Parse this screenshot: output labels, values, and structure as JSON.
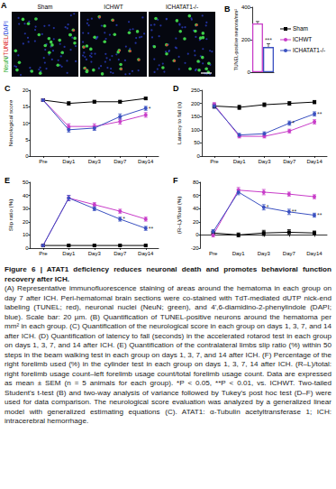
{
  "panel_a": {
    "panel": "A",
    "stain_label": "NeuN/TUNEL/DAPI",
    "images": [
      "Sham",
      "ICHWT",
      "ICHATAT1-/-"
    ]
  },
  "chart_data": [
    {
      "panel": "B",
      "type": "bar",
      "categories": [
        null,
        null
      ],
      "values": [
        300,
        155
      ],
      "errors": [
        12,
        20
      ],
      "colors": [
        "#c83cc8",
        "#3a50c0"
      ],
      "y_label": "TUNEL-positive neurons/mm²",
      "ylim": [
        0,
        400
      ],
      "yticks": [
        0,
        200,
        400
      ],
      "tick_labels": "y",
      "grid": false,
      "annotations": [
        {
          "index": 1,
          "text": "***"
        }
      ]
    },
    {
      "panel": "C",
      "type": "line",
      "categories": [
        "Pre",
        "Day1",
        "Day3",
        "Day7",
        "Day14"
      ],
      "y_label": "Neurological score",
      "ylim": [
        0,
        20
      ],
      "yticks": [
        0,
        5,
        10,
        15,
        20
      ],
      "grid": false,
      "series": [
        {
          "name": "Sham",
          "color": "#000000",
          "marker": "square",
          "values": [
            17,
            16,
            16.5,
            16.5,
            17.5
          ],
          "errors": [
            0.3,
            0.5,
            0.4,
            0.4,
            0.3
          ]
        },
        {
          "name": "ICHWT",
          "color": "#c83cc8",
          "marker": "circle",
          "values": [
            17,
            9,
            9,
            10.5,
            12.5
          ],
          "errors": [
            0.3,
            0.8,
            0.8,
            0.8,
            0.7
          ]
        },
        {
          "name": "ICHATAT1-/-",
          "color": "#3a50c0",
          "marker": "circle",
          "values": [
            17,
            8,
            8.5,
            12,
            14.5
          ],
          "errors": [
            0.3,
            0.7,
            0.7,
            0.8,
            0.6
          ]
        }
      ],
      "annotations": [
        {
          "x": "Day14",
          "series": "ICHATAT1-/-",
          "text": "*"
        }
      ]
    },
    {
      "panel": "D",
      "type": "line",
      "categories": [
        "Pre",
        "Day1",
        "Day3",
        "Day7",
        "Day14"
      ],
      "y_label": "Latency to fall (s)",
      "ylim": [
        0,
        250
      ],
      "yticks": [
        0,
        50,
        100,
        150,
        200,
        250
      ],
      "grid": false,
      "series": [
        {
          "name": "Sham",
          "color": "#000000",
          "marker": "square",
          "values": [
            190,
            185,
            195,
            200,
            205
          ],
          "errors": [
            8,
            8,
            7,
            7,
            6
          ]
        },
        {
          "name": "ICHWT",
          "color": "#c83cc8",
          "marker": "circle",
          "values": [
            195,
            75,
            75,
            95,
            130
          ],
          "errors": [
            8,
            6,
            6,
            7,
            8
          ]
        },
        {
          "name": "ICHATAT1-/-",
          "color": "#3a50c0",
          "marker": "circle",
          "values": [
            190,
            80,
            85,
            125,
            160
          ],
          "errors": [
            8,
            6,
            7,
            8,
            8
          ]
        }
      ],
      "annotations": [
        {
          "x": "Day7",
          "series": "ICHATAT1-/-",
          "text": "*"
        },
        {
          "x": "Day14",
          "series": "ICHATAT1-/-",
          "text": "**"
        }
      ]
    },
    {
      "panel": "E",
      "type": "line",
      "categories": [
        "Pre",
        "Day1",
        "Day3",
        "Day7",
        "Day14"
      ],
      "y_label": "Slip ratio (%)",
      "ylim": [
        0,
        50
      ],
      "yticks": [
        0,
        10,
        20,
        30,
        40,
        50
      ],
      "grid": false,
      "series": [
        {
          "name": "Sham",
          "color": "#000000",
          "marker": "square",
          "values": [
            2,
            2,
            2,
            2,
            2
          ],
          "errors": [
            0.5,
            0.5,
            0.5,
            0.5,
            0.5
          ]
        },
        {
          "name": "ICHWT",
          "color": "#c83cc8",
          "marker": "circle",
          "values": [
            2,
            38,
            33,
            28,
            22
          ],
          "errors": [
            0.5,
            2,
            1.5,
            1.5,
            1.5
          ]
        },
        {
          "name": "ICHATAT1-/-",
          "color": "#3a50c0",
          "marker": "circle",
          "values": [
            2,
            38,
            30,
            22,
            15
          ],
          "errors": [
            0.5,
            2,
            1.5,
            1.5,
            1.5
          ]
        }
      ],
      "annotations": [
        {
          "x": "Day7",
          "series": "ICHATAT1-/-",
          "text": "*"
        },
        {
          "x": "Day14",
          "series": "ICHATAT1-/-",
          "text": "**"
        }
      ]
    },
    {
      "panel": "F",
      "type": "line",
      "categories": [
        "Pre",
        "Day1",
        "Day3",
        "Day7",
        "Day14"
      ],
      "y_label": "(R–L)/Total (%)",
      "ylim": [
        -20,
        80
      ],
      "yticks": [
        -20,
        0,
        20,
        40,
        60,
        80
      ],
      "grid": false,
      "series": [
        {
          "name": "Sham",
          "color": "#000000",
          "marker": "square",
          "values": [
            3,
            0,
            3,
            4,
            3
          ],
          "errors": [
            3,
            3,
            4,
            4,
            3
          ]
        },
        {
          "name": "ICHWT",
          "color": "#c83cc8",
          "marker": "circle",
          "values": [
            0,
            68,
            65,
            62,
            58
          ],
          "errors": [
            3,
            4,
            4,
            3,
            3
          ]
        },
        {
          "name": "ICHATAT1-/-",
          "color": "#3a50c0",
          "marker": "circle",
          "values": [
            5,
            65,
            42,
            35,
            30
          ],
          "errors": [
            3,
            4,
            4,
            4,
            3
          ]
        }
      ],
      "annotations": [
        {
          "x": "Day3",
          "series": "ICHATAT1-/-",
          "text": "*"
        },
        {
          "x": "Day7",
          "series": "ICHATAT1-/-",
          "text": "**"
        },
        {
          "x": "Day14",
          "series": "ICHATAT1-/-",
          "text": "**"
        }
      ]
    }
  ],
  "caption": {
    "title": "Figure 6 | ATAT1 deficiency reduces neuronal death and promotes behavioral function recovery after ICH.",
    "text": "(A) Representative immunofluorescence staining of areas around the hematoma in each group on day 7 after ICH. Peri-hematomal brain sections were co-stained with TdT-mediated dUTP nick-end labeling (TUNEL; red), neuronal nuclei (NeuN; green), and 4',6-diamidino-2-phenylindole (DAPI; blue). Scale bar: 20 µm. (B) Quantification of TUNEL-positive neurons around the hematoma per mm² in each group. (C) Quantification of the neurological score in each group on days 1, 3, 7, and 14 after ICH. (D) Quantification of latency to fall (seconds) in the accelerated rotarod test in each group on days 1, 3, 7, and 14 after ICH. (E) Quantification of the contralateral limbs slip ratio (%) within 50 steps in the beam walking test in each group on days 1, 3, 7, and 14 after ICH. (F) Percentage of the right forelimb used (%) in the cylinder test in each group on days 1, 3, 7, 14 after ICH. (R–L)/total: right forelimb usage count–left forelimb usage count/total forelimb usage count. Data are expressed as mean ± SEM (n = 5 animals for each group). *P < 0.05, **P < 0.01, vs. ICHWT. Two-tailed Student's t-test (B) and two-way analysis of variance followed by Tukey's post hoc test (D–F) were used for data comparison. The neurological score evaluation was analyzed by a generalized linear model with generalized estimating equations (C). ATAT1: α-Tubulin acetyltransferase 1; ICH: intracerebral hemorrhage."
  }
}
